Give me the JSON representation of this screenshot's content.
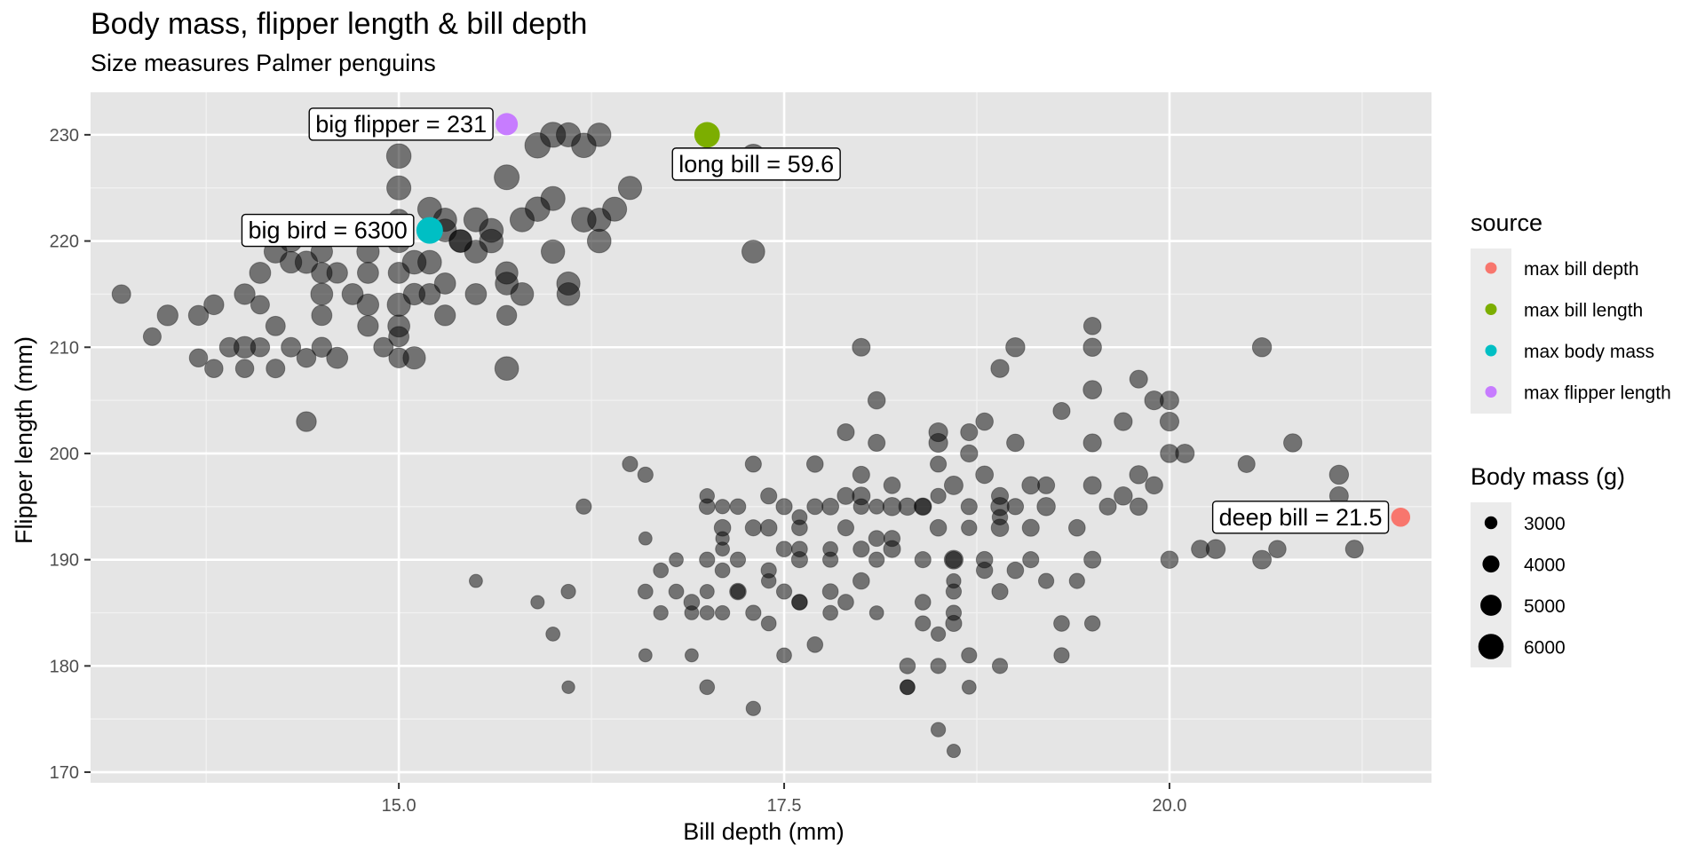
{
  "title": "Body mass, flipper length & bill depth",
  "subtitle": "Size measures Palmer penguins",
  "chart_data": {
    "type": "scatter",
    "xlabel": "Bill depth (mm)",
    "ylabel": "Flipper length (mm)",
    "xlim": [
      13.0,
      21.7
    ],
    "ylim": [
      169,
      234
    ],
    "x_ticks": [
      15.0,
      17.5,
      20.0
    ],
    "x_tick_labels": [
      "15.0",
      "17.5",
      "20.0"
    ],
    "y_ticks": [
      170,
      180,
      190,
      200,
      210,
      220,
      230
    ],
    "y_tick_labels": [
      "170",
      "180",
      "190",
      "200",
      "210",
      "220",
      "230"
    ],
    "grid": true,
    "panel_background": "#e5e5e5",
    "point_color": "#000000",
    "point_alpha": 0.5,
    "highlights": [
      {
        "label": "deep bill = 21.5",
        "source": "max bill depth",
        "x": 21.5,
        "y": 194,
        "mass": 4500,
        "color": "#F8766D"
      },
      {
        "label": "long bill = 59.6",
        "source": "max bill length",
        "x": 17.0,
        "y": 230,
        "mass": 6050,
        "color": "#7CAE00"
      },
      {
        "label": "big bird = 6300",
        "source": "max body mass",
        "x": 15.2,
        "y": 221,
        "mass": 6300,
        "color": "#00BFC4"
      },
      {
        "label": "big flipper = 231",
        "source": "max flipper length",
        "x": 15.7,
        "y": 231,
        "mass": 5250,
        "color": "#C77CFF"
      }
    ],
    "legend_source": {
      "title": "source",
      "placement": "right",
      "items": [
        {
          "label": "max bill depth",
          "color": "#F8766D"
        },
        {
          "label": "max bill length",
          "color": "#7CAE00"
        },
        {
          "label": "max body mass",
          "color": "#00BFC4"
        },
        {
          "label": "max flipper length",
          "color": "#C77CFF"
        }
      ]
    },
    "legend_size": {
      "title": "Body mass (g)",
      "placement": "right",
      "items": [
        {
          "label": "3000",
          "mass": 3000
        },
        {
          "label": "4000",
          "mass": 4000
        },
        {
          "label": "5000",
          "mass": 5000
        },
        {
          "label": "6000",
          "mass": 6000
        }
      ]
    },
    "mass_range": [
      2700,
      6300
    ],
    "points": [
      [
        13.2,
        215,
        4400
      ],
      [
        13.4,
        211,
        4200
      ],
      [
        13.5,
        213,
        4900
      ],
      [
        13.7,
        209,
        4300
      ],
      [
        13.7,
        213,
        4700
      ],
      [
        13.8,
        214,
        4700
      ],
      [
        13.8,
        208,
        4300
      ],
      [
        13.9,
        210,
        4600
      ],
      [
        14.0,
        215,
        4900
      ],
      [
        14.0,
        208,
        4300
      ],
      [
        14.1,
        217,
        5000
      ],
      [
        14.1,
        214,
        4400
      ],
      [
        14.1,
        210,
        4500
      ],
      [
        14.2,
        208,
        4400
      ],
      [
        14.2,
        212,
        4600
      ],
      [
        14.3,
        210,
        4600
      ],
      [
        14.3,
        220,
        5200
      ],
      [
        14.4,
        218,
        5300
      ],
      [
        14.4,
        209,
        4500
      ],
      [
        14.5,
        219,
        5100
      ],
      [
        14.5,
        217,
        4900
      ],
      [
        14.5,
        213,
        4800
      ],
      [
        14.5,
        210,
        4700
      ],
      [
        14.6,
        221,
        5000
      ],
      [
        14.6,
        217,
        4900
      ],
      [
        14.7,
        215,
        5000
      ],
      [
        14.8,
        217,
        5000
      ],
      [
        14.8,
        212,
        4900
      ],
      [
        14.9,
        210,
        4600
      ],
      [
        15.0,
        209,
        4700
      ],
      [
        15.0,
        211,
        4800
      ],
      [
        15.0,
        212,
        5200
      ],
      [
        15.1,
        215,
        5100
      ],
      [
        15.2,
        218,
        5600
      ],
      [
        15.2,
        215,
        5000
      ],
      [
        15.3,
        222,
        5500
      ],
      [
        15.4,
        220,
        5400
      ],
      [
        15.5,
        215,
        5000
      ],
      [
        15.6,
        221,
        5650
      ],
      [
        15.7,
        217,
        5300
      ],
      [
        15.7,
        213,
        4700
      ],
      [
        15.8,
        222,
        5700
      ],
      [
        15.9,
        223,
        5800
      ],
      [
        16.0,
        219,
        5550
      ],
      [
        16.1,
        215,
        5400
      ],
      [
        16.2,
        222,
        5800
      ],
      [
        16.3,
        220,
        5600
      ],
      [
        16.4,
        223,
        5700
      ],
      [
        16.5,
        225,
        5500
      ],
      [
        14.0,
        210,
        5100
      ],
      [
        14.2,
        219,
        5400
      ],
      [
        14.3,
        218,
        5100
      ],
      [
        14.5,
        215,
        5200
      ],
      [
        14.6,
        209,
        5000
      ],
      [
        14.8,
        214,
        5100
      ],
      [
        15.0,
        214,
        5500
      ],
      [
        15.0,
        217,
        5000
      ],
      [
        15.5,
        219,
        5400
      ],
      [
        15.0,
        225,
        5700
      ],
      [
        15.0,
        228,
        5800
      ],
      [
        15.7,
        226,
        5900
      ],
      [
        15.9,
        229,
        6000
      ],
      [
        16.0,
        230,
        5950
      ],
      [
        16.1,
        230,
        5700
      ],
      [
        16.3,
        230,
        5550
      ],
      [
        16.2,
        229,
        5800
      ],
      [
        17.0,
        230,
        5600
      ],
      [
        17.3,
        228,
        5600
      ],
      [
        15.2,
        223,
        5650
      ],
      [
        15.3,
        216,
        5000
      ],
      [
        15.5,
        222,
        5700
      ],
      [
        15.6,
        220,
        5600
      ],
      [
        15.7,
        216,
        5400
      ],
      [
        15.8,
        215,
        5400
      ],
      [
        16.0,
        224,
        5700
      ],
      [
        16.1,
        216,
        5500
      ],
      [
        16.3,
        222,
        5500
      ],
      [
        17.3,
        219,
        5400
      ],
      [
        15.0,
        222,
        5000
      ],
      [
        15.4,
        220,
        5300
      ],
      [
        15.7,
        208,
        5600
      ],
      [
        14.4,
        203,
        4700
      ],
      [
        15.1,
        209,
        5300
      ],
      [
        15.3,
        213,
        4900
      ],
      [
        15.1,
        218,
        5600
      ],
      [
        14.8,
        219,
        5300
      ],
      [
        15.0,
        220,
        5500
      ],
      [
        15.3,
        221,
        5400
      ],
      [
        15.5,
        188,
        3100
      ],
      [
        15.9,
        186,
        3150
      ],
      [
        16.0,
        183,
        3300
      ],
      [
        16.1,
        178,
        3000
      ],
      [
        16.1,
        187,
        3400
      ],
      [
        16.2,
        195,
        3600
      ],
      [
        16.5,
        199,
        3600
      ],
      [
        16.6,
        198,
        3600
      ],
      [
        16.7,
        189,
        3500
      ],
      [
        16.7,
        185,
        3400
      ],
      [
        16.8,
        190,
        3300
      ],
      [
        16.8,
        187,
        3500
      ],
      [
        16.9,
        181,
        3100
      ],
      [
        17.0,
        178,
        3500
      ],
      [
        17.0,
        187,
        3350
      ],
      [
        17.1,
        192,
        3200
      ],
      [
        17.1,
        191,
        3300
      ],
      [
        17.3,
        199,
        3800
      ],
      [
        17.1,
        193,
        3900
      ],
      [
        17.1,
        185,
        3400
      ],
      [
        17.2,
        195,
        3700
      ],
      [
        17.2,
        190,
        3600
      ],
      [
        17.3,
        176,
        3400
      ],
      [
        17.3,
        185,
        3600
      ],
      [
        17.4,
        188,
        3450
      ],
      [
        17.4,
        184,
        3500
      ],
      [
        17.4,
        189,
        3600
      ],
      [
        17.5,
        195,
        3800
      ],
      [
        17.5,
        187,
        3600
      ],
      [
        17.5,
        181,
        3500
      ],
      [
        17.6,
        186,
        3700
      ],
      [
        17.6,
        190,
        3800
      ],
      [
        17.6,
        193,
        3700
      ],
      [
        17.7,
        182,
        3700
      ],
      [
        17.7,
        199,
        3900
      ],
      [
        17.8,
        185,
        3500
      ],
      [
        17.8,
        187,
        3700
      ],
      [
        17.8,
        190,
        3600
      ],
      [
        17.9,
        196,
        4000
      ],
      [
        17.9,
        186,
        3700
      ],
      [
        18.0,
        188,
        3900
      ],
      [
        18.0,
        191,
        3800
      ],
      [
        18.0,
        198,
        4000
      ],
      [
        18.1,
        185,
        3300
      ],
      [
        18.1,
        190,
        3600
      ],
      [
        18.1,
        195,
        3500
      ],
      [
        18.2,
        192,
        3800
      ],
      [
        18.3,
        180,
        3700
      ],
      [
        18.3,
        178,
        3500
      ],
      [
        18.3,
        195,
        4100
      ],
      [
        18.4,
        186,
        3700
      ],
      [
        18.4,
        190,
        3800
      ],
      [
        18.5,
        183,
        3400
      ],
      [
        18.5,
        199,
        3800
      ],
      [
        18.6,
        190,
        3900
      ],
      [
        18.6,
        184,
        3800
      ],
      [
        18.7,
        195,
        3800
      ],
      [
        18.7,
        200,
        4050
      ],
      [
        18.7,
        178,
        3300
      ],
      [
        18.8,
        190,
        3900
      ],
      [
        18.9,
        196,
        4000
      ],
      [
        18.9,
        180,
        3600
      ],
      [
        19.0,
        189,
        3900
      ],
      [
        19.0,
        195,
        3850
      ],
      [
        19.1,
        193,
        4000
      ],
      [
        19.1,
        190,
        3800
      ],
      [
        19.2,
        197,
        4000
      ],
      [
        19.3,
        184,
        3700
      ],
      [
        19.4,
        193,
        3900
      ],
      [
        19.5,
        197,
        4200
      ],
      [
        19.6,
        195,
        4000
      ],
      [
        19.7,
        196,
        4300
      ],
      [
        19.8,
        198,
        4300
      ],
      [
        19.9,
        197,
        4100
      ],
      [
        20.0,
        190,
        4100
      ],
      [
        20.1,
        200,
        4400
      ],
      [
        20.2,
        191,
        4200
      ],
      [
        20.3,
        191,
        4500
      ],
      [
        20.5,
        199,
        4000
      ],
      [
        20.6,
        190,
        4400
      ],
      [
        20.7,
        191,
        4100
      ],
      [
        20.8,
        201,
        4300
      ],
      [
        21.1,
        196,
        4400
      ],
      [
        21.1,
        198,
        4500
      ],
      [
        21.2,
        191,
        4200
      ],
      [
        20.6,
        210,
        4500
      ],
      [
        19.5,
        206,
        4350
      ],
      [
        19.5,
        210,
        4300
      ],
      [
        19.5,
        212,
        4100
      ],
      [
        19.5,
        201,
        4250
      ],
      [
        19.3,
        204,
        4000
      ],
      [
        19.0,
        201,
        4100
      ],
      [
        18.9,
        208,
        4250
      ],
      [
        19.0,
        210,
        4500
      ],
      [
        18.8,
        203,
        4100
      ],
      [
        18.7,
        202,
        4000
      ],
      [
        18.1,
        205,
        4100
      ],
      [
        18.0,
        210,
        4200
      ],
      [
        18.1,
        201,
        4000
      ],
      [
        17.9,
        202,
        4000
      ],
      [
        18.5,
        202,
        4450
      ],
      [
        18.5,
        201,
        4450
      ],
      [
        19.8,
        207,
        4200
      ],
      [
        19.9,
        205,
        4450
      ],
      [
        20.0,
        203,
        4450
      ],
      [
        20.0,
        205,
        4400
      ],
      [
        19.7,
        203,
        4250
      ],
      [
        18.6,
        190,
        4450
      ],
      [
        19.1,
        197,
        4150
      ],
      [
        18.2,
        195,
        4300
      ],
      [
        18.8,
        198,
        4150
      ],
      [
        18.9,
        193,
        4100
      ],
      [
        17.7,
        195,
        3750
      ],
      [
        17.9,
        193,
        3800
      ],
      [
        17.3,
        193,
        3800
      ],
      [
        16.6,
        187,
        3500
      ],
      [
        16.9,
        186,
        3700
      ],
      [
        17.0,
        190,
        3600
      ],
      [
        17.0,
        195,
        3700
      ],
      [
        17.0,
        185,
        3350
      ],
      [
        17.2,
        187,
        3400
      ],
      [
        17.5,
        191,
        3700
      ],
      [
        17.6,
        186,
        3600
      ],
      [
        17.8,
        195,
        3950
      ],
      [
        18.0,
        196,
        4200
      ],
      [
        18.2,
        191,
        4000
      ],
      [
        18.4,
        195,
        4100
      ],
      [
        18.6,
        197,
        4400
      ],
      [
        18.9,
        195,
        4300
      ],
      [
        19.2,
        195,
        4300
      ],
      [
        19.5,
        190,
        4000
      ],
      [
        19.8,
        195,
        4100
      ],
      [
        20.0,
        200,
        4300
      ],
      [
        17.2,
        187,
        3900
      ],
      [
        17.4,
        193,
        3900
      ],
      [
        17.6,
        191,
        3700
      ],
      [
        18.1,
        192,
        3750
      ],
      [
        18.5,
        193,
        3900
      ],
      [
        18.9,
        187,
        3800
      ],
      [
        18.6,
        188,
        3400
      ],
      [
        18.6,
        187,
        3600
      ],
      [
        18.5,
        180,
        3600
      ],
      [
        18.4,
        184,
        3600
      ],
      [
        18.7,
        181,
        3600
      ],
      [
        18.6,
        185,
        3600
      ],
      [
        18.8,
        189,
        3850
      ],
      [
        19.3,
        181,
        3600
      ],
      [
        19.4,
        188,
        3600
      ],
      [
        19.5,
        184,
        3650
      ],
      [
        18.5,
        174,
        3400
      ],
      [
        18.3,
        178,
        3500
      ],
      [
        18.6,
        172,
        3150
      ],
      [
        17.1,
        195,
        3400
      ],
      [
        16.6,
        192,
        3100
      ],
      [
        16.6,
        181,
        3100
      ],
      [
        16.9,
        185,
        3300
      ],
      [
        17.0,
        196,
        3450
      ],
      [
        17.1,
        189,
        3500
      ],
      [
        17.4,
        196,
        3800
      ],
      [
        17.6,
        194,
        3550
      ],
      [
        17.8,
        191,
        3500
      ],
      [
        18.0,
        195,
        3650
      ],
      [
        18.2,
        197,
        3900
      ],
      [
        18.4,
        195,
        3850
      ],
      [
        18.5,
        196,
        3600
      ],
      [
        18.7,
        193,
        3650
      ],
      [
        18.9,
        194,
        3650
      ],
      [
        19.2,
        188,
        3600
      ]
    ]
  }
}
